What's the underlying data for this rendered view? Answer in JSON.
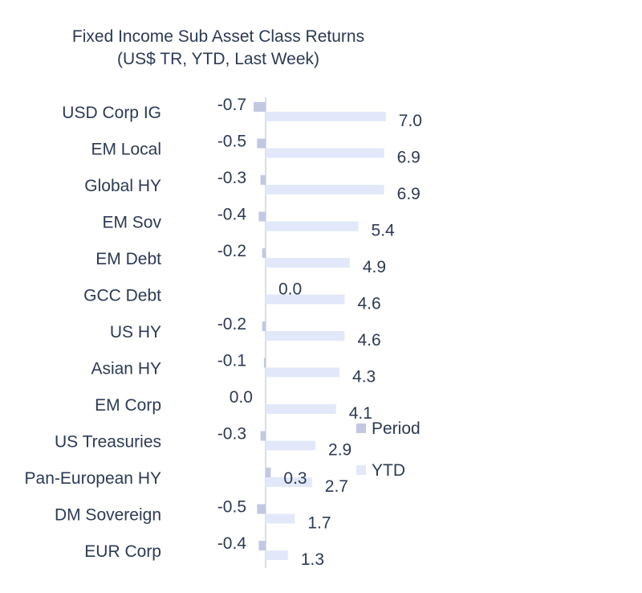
{
  "chart_data": {
    "type": "bar",
    "orientation": "horizontal",
    "title": "Fixed Income Sub Asset Class Returns",
    "subtitle": "(US$ TR, YTD, Last Week)",
    "categories": [
      "USD Corp IG",
      "EM Local",
      "Global HY",
      "EM Sov",
      "EM Debt",
      "GCC Debt",
      "US HY",
      "Asian HY",
      "EM Corp",
      "US Treasuries",
      "Pan-European HY",
      "DM Sovereign",
      "EUR Corp"
    ],
    "series": [
      {
        "name": "Period",
        "color": "#c2c8e3",
        "values": [
          -0.7,
          -0.5,
          -0.3,
          -0.4,
          -0.2,
          0.0,
          -0.2,
          -0.1,
          0.0,
          -0.3,
          0.3,
          -0.5,
          -0.4
        ],
        "labels": [
          "-0.7",
          "-0.5",
          "-0.3",
          "-0.4",
          "-0.2",
          "0.0",
          "-0.2",
          "-0.1",
          "0.0",
          "-0.3",
          "0.3",
          "-0.5",
          "-0.4"
        ]
      },
      {
        "name": "YTD",
        "color": "#e2e8fa",
        "values": [
          7.0,
          6.9,
          6.9,
          5.4,
          4.9,
          4.6,
          4.6,
          4.3,
          4.1,
          2.9,
          2.7,
          1.7,
          1.3
        ],
        "labels": [
          "7.0",
          "6.9",
          "6.9",
          "5.4",
          "4.9",
          "4.6",
          "4.6",
          "4.3",
          "4.1",
          "2.9",
          "2.7",
          "1.7",
          "1.3"
        ]
      }
    ],
    "legend_position": "right",
    "grid": false
  }
}
